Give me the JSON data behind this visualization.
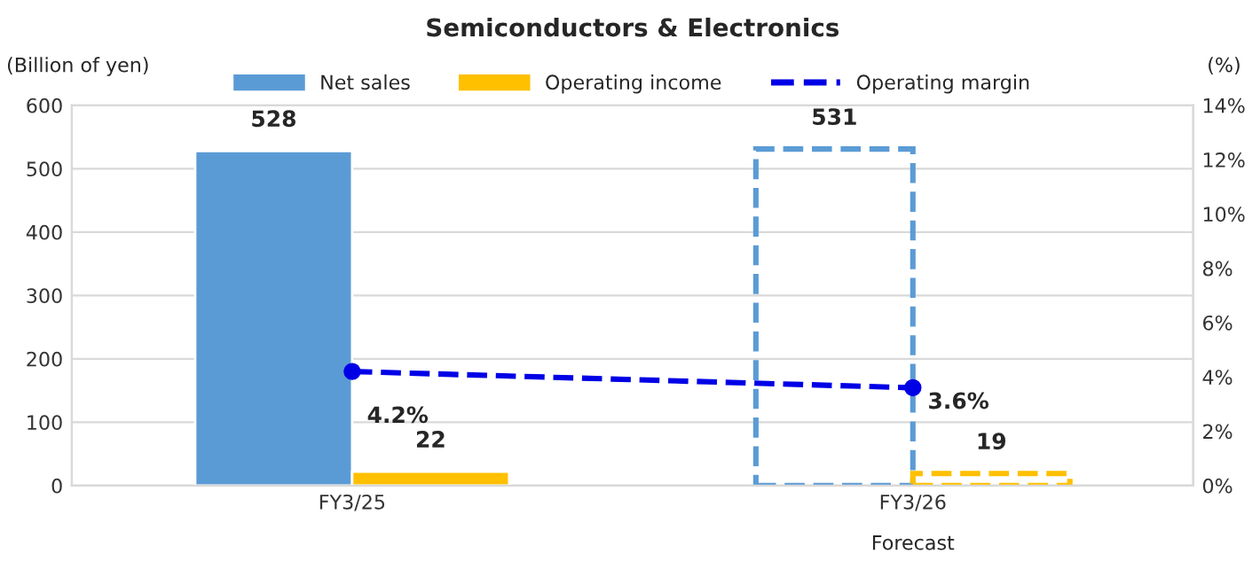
{
  "chart_data": {
    "type": "bar",
    "title": "Semiconductors & Electronics",
    "categories": [
      "FY3/25",
      "FY3/26"
    ],
    "ylabel": "(Billion of yen)",
    "y2label": "(%)",
    "ylim": [
      0,
      600
    ],
    "yticks": [
      0,
      100,
      200,
      300,
      400,
      500,
      600
    ],
    "y2lim": [
      0,
      14
    ],
    "y2ticks": [
      {
        "value": 0,
        "label": "0%"
      },
      {
        "value": 2,
        "label": "2%"
      },
      {
        "value": 4,
        "label": "4%"
      },
      {
        "value": 6,
        "label": "6%"
      },
      {
        "value": 8,
        "label": "8%"
      },
      {
        "value": 10,
        "label": "10%"
      },
      {
        "value": 12,
        "label": "12%"
      },
      {
        "value": 14,
        "label": "14%"
      }
    ],
    "series": [
      {
        "name": "Net sales",
        "color": "#5b9bd5",
        "colors": [
          "#5b9bd5",
          null
        ],
        "values": [
          528,
          531
        ],
        "value_labels": [
          "528",
          "531"
        ]
      },
      {
        "name": "Operating income",
        "color": "#ffc000",
        "colors": [
          "#ffc000",
          null
        ],
        "values": [
          22,
          19
        ],
        "value_labels": [
          "22",
          "19"
        ]
      },
      {
        "name": "Operating margin",
        "type": "line",
        "axis": "y2",
        "color": "#0000e6",
        "line_style": "dashed",
        "marker": "circle",
        "values": [
          4.2,
          3.6
        ],
        "value_labels": [
          "4.2%",
          "3.6%"
        ]
      }
    ],
    "annotations": [
      "Forecast"
    ],
    "grid": "y",
    "legend": "top"
  }
}
